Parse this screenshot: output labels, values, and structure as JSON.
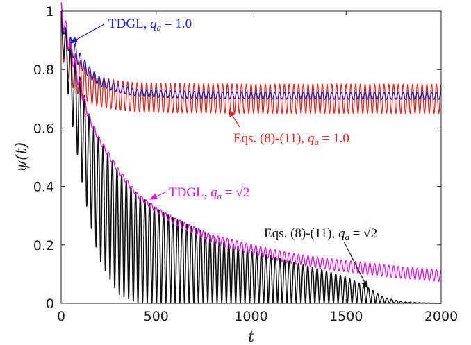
{
  "chart_data": {
    "type": "line",
    "xlabel": "t",
    "ylabel": "ψ(t)",
    "xlim": [
      0,
      2000
    ],
    "ylim": [
      0,
      1
    ],
    "xticks": [
      0,
      500,
      1000,
      1500,
      2000
    ],
    "yticks": [
      0,
      0.2,
      0.4,
      0.6,
      0.8,
      1
    ],
    "xtick_labels": [
      "0",
      "500",
      "1000",
      "1500",
      "2000"
    ],
    "ytick_labels": [
      "0",
      "0.2",
      "0.4",
      "0.6",
      "0.8",
      "1"
    ],
    "grid": false,
    "series": [
      {
        "name": "TDGL, qa = 1.0",
        "color": "#1c1cc8",
        "x": [
          0,
          25,
          50,
          75,
          100,
          150,
          200,
          300,
          400,
          600,
          800,
          1000,
          1500,
          2000
        ],
        "y": [
          1.0,
          0.91,
          0.88,
          0.86,
          0.83,
          0.79,
          0.76,
          0.735,
          0.72,
          0.715,
          0.712,
          0.711,
          0.71,
          0.71
        ],
        "oscillation_amplitude": [
          0.03,
          0.03,
          0.03,
          0.03,
          0.025,
          0.02,
          0.016,
          0.013,
          0.012,
          0.012,
          0.012,
          0.012,
          0.012,
          0.012
        ]
      },
      {
        "name": "Eqs. (8)-(11), qa = 1.0",
        "color": "#e0261f",
        "x": [
          0,
          25,
          50,
          75,
          100,
          150,
          200,
          300,
          400,
          600,
          800,
          1000,
          1500,
          2000
        ],
        "y": [
          0.92,
          0.86,
          0.82,
          0.79,
          0.77,
          0.74,
          0.725,
          0.712,
          0.705,
          0.702,
          0.701,
          0.7,
          0.7,
          0.7
        ],
        "oscillation_amplitude": [
          0.06,
          0.07,
          0.07,
          0.065,
          0.06,
          0.055,
          0.052,
          0.05,
          0.05,
          0.05,
          0.05,
          0.05,
          0.05,
          0.05
        ]
      },
      {
        "name": "TDGL, qa = √2",
        "color": "#e012e0",
        "x": [
          0,
          50,
          100,
          150,
          200,
          300,
          400,
          500,
          600,
          800,
          1000,
          1200,
          1400,
          1600,
          1800,
          2000
        ],
        "y": [
          1.0,
          0.87,
          0.74,
          0.63,
          0.56,
          0.455,
          0.37,
          0.32,
          0.28,
          0.22,
          0.185,
          0.155,
          0.135,
          0.12,
          0.105,
          0.095
        ],
        "oscillation_amplitude": [
          0.03,
          0.03,
          0.02,
          0.012,
          0.01,
          0.008,
          0.008,
          0.01,
          0.012,
          0.015,
          0.017,
          0.018,
          0.019,
          0.02,
          0.02,
          0.02
        ]
      },
      {
        "name": "Eqs. (8)-(11), qa = √2",
        "color": "#111111",
        "x": [
          0,
          50,
          100,
          150,
          200,
          300,
          400,
          500,
          600,
          800,
          1000,
          1200,
          1400,
          1500,
          1600,
          1700,
          1800,
          1900,
          2000
        ],
        "y_upper": [
          1.0,
          0.87,
          0.77,
          0.64,
          0.56,
          0.455,
          0.375,
          0.325,
          0.29,
          0.23,
          0.18,
          0.145,
          0.11,
          0.09,
          0.06,
          0.02,
          0.005,
          0.002,
          0.0
        ],
        "y_lower": [
          0.9,
          0.65,
          0.45,
          0.28,
          0.15,
          0.03,
          0.0,
          0.0,
          0.0,
          0.0,
          0.0,
          0.0,
          0.0,
          0.0,
          0.0,
          0.0,
          0.0,
          0.0,
          0.0
        ]
      }
    ],
    "annotations": [
      {
        "label": "TDGL,",
        "qa": "q",
        "sub": "a",
        "eq": " = 1.0",
        "color": "#1c1cc8",
        "target": [
          45,
          0.89
        ]
      },
      {
        "label": "Eqs. (8)-(11),",
        "qa": "q",
        "sub": "a",
        "eq": " = 1.0",
        "color": "#e0261f",
        "target": [
          880,
          0.665
        ]
      },
      {
        "label": "TDGL,",
        "qa": "q",
        "sub": "a",
        "eq": " = √2",
        "color": "#e012e0",
        "target": [
          465,
          0.355
        ]
      },
      {
        "label": "Eqs. (8)-(11),",
        "qa": "q",
        "sub": "a",
        "eq": " = √2",
        "color": "#111111",
        "target": [
          1615,
          0.05
        ]
      }
    ]
  }
}
